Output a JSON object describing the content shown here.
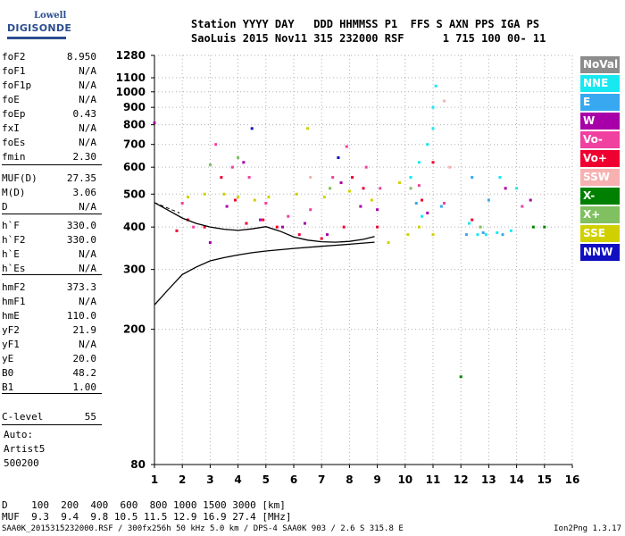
{
  "logo": {
    "line1": "Lowell",
    "line2": "DIGISONDE"
  },
  "header": {
    "line1": "Station YYYY DAY   DDD HHMMSS P1  FFS S AXN PPS IGA PS",
    "line2": "SaoLuis 2015 Nov11 315 232000 RSF      1 715 100 00- 11"
  },
  "params": [
    {
      "key": "foF2",
      "value": "8.950"
    },
    {
      "key": "foF1",
      "value": "N/A"
    },
    {
      "key": "foF1p",
      "value": "N/A"
    },
    {
      "key": "foE",
      "value": "N/A"
    },
    {
      "key": "foEp",
      "value": "0.43"
    },
    {
      "key": "fxI",
      "value": "N/A"
    },
    {
      "key": "foEs",
      "value": "N/A"
    },
    {
      "key": "fmin",
      "value": "2.30"
    },
    {
      "key": "MUF(D)",
      "value": "27.35"
    },
    {
      "key": "M(D)",
      "value": "3.06"
    },
    {
      "key": "D",
      "value": "N/A"
    },
    {
      "key": "h`F",
      "value": "330.0"
    },
    {
      "key": "h`F2",
      "value": "330.0"
    },
    {
      "key": "h`E",
      "value": "N/A"
    },
    {
      "key": "h`Es",
      "value": "N/A"
    },
    {
      "key": "hmF2",
      "value": "373.3"
    },
    {
      "key": "hmF1",
      "value": "N/A"
    },
    {
      "key": "hmE",
      "value": "110.0"
    },
    {
      "key": "yF2",
      "value": "21.9"
    },
    {
      "key": "yF1",
      "value": "N/A"
    },
    {
      "key": "yE",
      "value": "20.0"
    },
    {
      "key": "B0",
      "value": "48.2"
    },
    {
      "key": "B1",
      "value": "1.00"
    },
    {
      "key": "C-level",
      "value": "55"
    }
  ],
  "auto": {
    "line1": "Auto:",
    "line2": "Artist5",
    "line3": "500200"
  },
  "legend": [
    {
      "label": "NoVal",
      "color": "#8c8c8c"
    },
    {
      "label": "NNE",
      "color": "#18e8f0"
    },
    {
      "label": "E",
      "color": "#38a8f0"
    },
    {
      "label": "W",
      "color": "#a800a8"
    },
    {
      "label": "Vo-",
      "color": "#f040a0"
    },
    {
      "label": "Vo+",
      "color": "#f00030"
    },
    {
      "label": "SSW",
      "color": "#f8b0b0"
    },
    {
      "label": "X-",
      "color": "#008000"
    },
    {
      "label": "X+",
      "color": "#80c060"
    },
    {
      "label": "SSE",
      "color": "#d0d000"
    },
    {
      "label": "NNW",
      "color": "#1010c0"
    }
  ],
  "bottom": {
    "d_row": "D    100  200  400  600  800 1000 1500 3000 [km]",
    "muf_row": "MUF  9.3  9.4  9.8 10.5 11.5 12.9 16.9 27.4 [MHz]"
  },
  "footer": {
    "left": "SAA0K_2015315232000.RSF / 300fx256h 50 kHz 5.0 km / DPS-4 SAA0K 903 / 2.6 S 315.8 E",
    "right": "Ion2Png 1.3.17"
  },
  "chart_data": {
    "type": "scatter",
    "title": "",
    "xlabel": "",
    "ylabel": "",
    "xlim": [
      1,
      16
    ],
    "ylim": [
      80,
      1280
    ],
    "x_ticks": [
      1,
      2,
      3,
      4,
      5,
      6,
      7,
      8,
      9,
      10,
      11,
      12,
      13,
      14,
      15,
      16
    ],
    "y_ticks": [
      80,
      200,
      300,
      400,
      500,
      600,
      700,
      800,
      900,
      1000,
      1100,
      1280
    ],
    "y_scale": "log",
    "grid": true,
    "series": [
      {
        "name": "NNE",
        "points": [
          [
            10.2,
            560
          ],
          [
            10.5,
            620
          ],
          [
            10.8,
            700
          ],
          [
            11.0,
            900
          ],
          [
            11.1,
            1040
          ],
          [
            11.0,
            780
          ],
          [
            12.3,
            410
          ],
          [
            12.6,
            380
          ],
          [
            12.9,
            380
          ],
          [
            13.3,
            385
          ],
          [
            13.8,
            390
          ],
          [
            14.0,
            520
          ],
          [
            10.6,
            430
          ],
          [
            13.4,
            560
          ]
        ]
      },
      {
        "name": "E",
        "points": [
          [
            10.4,
            470
          ],
          [
            11.3,
            460
          ],
          [
            12.2,
            380
          ],
          [
            12.8,
            385
          ],
          [
            13.5,
            380
          ],
          [
            13.0,
            480
          ],
          [
            12.4,
            560
          ]
        ]
      },
      {
        "name": "W",
        "points": [
          [
            3.0,
            360
          ],
          [
            3.6,
            460
          ],
          [
            4.2,
            620
          ],
          [
            4.8,
            420
          ],
          [
            5.6,
            400
          ],
          [
            6.4,
            410
          ],
          [
            7.2,
            380
          ],
          [
            7.7,
            540
          ],
          [
            8.4,
            460
          ],
          [
            9.0,
            450
          ],
          [
            10.8,
            440
          ],
          [
            13.6,
            520
          ],
          [
            14.5,
            480
          ],
          [
            1.0,
            810
          ]
        ]
      },
      {
        "name": "Vo-",
        "points": [
          [
            2.0,
            470
          ],
          [
            2.4,
            400
          ],
          [
            3.2,
            700
          ],
          [
            3.8,
            600
          ],
          [
            4.4,
            560
          ],
          [
            5.0,
            470
          ],
          [
            5.8,
            430
          ],
          [
            6.6,
            450
          ],
          [
            7.4,
            560
          ],
          [
            7.9,
            690
          ],
          [
            8.6,
            600
          ],
          [
            9.1,
            520
          ],
          [
            10.5,
            530
          ],
          [
            11.4,
            470
          ],
          [
            14.2,
            460
          ]
        ]
      },
      {
        "name": "Vo+",
        "points": [
          [
            1.8,
            390
          ],
          [
            2.2,
            420
          ],
          [
            2.8,
            400
          ],
          [
            3.4,
            560
          ],
          [
            3.9,
            480
          ],
          [
            4.3,
            410
          ],
          [
            4.9,
            420
          ],
          [
            5.4,
            400
          ],
          [
            6.2,
            380
          ],
          [
            7.0,
            370
          ],
          [
            7.8,
            400
          ],
          [
            8.1,
            560
          ],
          [
            8.5,
            520
          ],
          [
            9.0,
            400
          ],
          [
            10.6,
            480
          ],
          [
            11.0,
            620
          ],
          [
            12.4,
            420
          ]
        ]
      },
      {
        "name": "SSW",
        "points": [
          [
            11.4,
            940
          ],
          [
            11.6,
            600
          ],
          [
            6.6,
            560
          ]
        ]
      },
      {
        "name": "X-",
        "points": [
          [
            12.0,
            145
          ],
          [
            14.6,
            400
          ],
          [
            15.0,
            400
          ]
        ]
      },
      {
        "name": "X+",
        "points": [
          [
            3.0,
            610
          ],
          [
            4.0,
            640
          ],
          [
            7.3,
            520
          ],
          [
            10.2,
            520
          ],
          [
            12.7,
            400
          ]
        ]
      },
      {
        "name": "SSE",
        "points": [
          [
            2.2,
            490
          ],
          [
            2.8,
            500
          ],
          [
            3.5,
            500
          ],
          [
            4.0,
            490
          ],
          [
            4.6,
            480
          ],
          [
            5.1,
            490
          ],
          [
            6.1,
            500
          ],
          [
            7.1,
            490
          ],
          [
            8.0,
            510
          ],
          [
            8.8,
            480
          ],
          [
            9.4,
            360
          ],
          [
            10.1,
            380
          ],
          [
            10.5,
            400
          ],
          [
            11.0,
            380
          ],
          [
            9.8,
            540
          ],
          [
            6.5,
            780
          ]
        ]
      },
      {
        "name": "NNW",
        "points": [
          [
            4.5,
            780
          ],
          [
            7.6,
            640
          ]
        ]
      }
    ],
    "curves": [
      {
        "name": "profile",
        "points": [
          [
            1.0,
            236
          ],
          [
            1.5,
            262
          ],
          [
            2.0,
            290
          ],
          [
            2.5,
            305
          ],
          [
            3.0,
            318
          ],
          [
            3.5,
            325
          ],
          [
            4.0,
            331
          ],
          [
            4.5,
            336
          ],
          [
            5.0,
            340
          ],
          [
            6.0,
            346
          ],
          [
            7.0,
            351
          ],
          [
            8.0,
            356
          ],
          [
            8.9,
            361
          ]
        ]
      },
      {
        "name": "virtual-height",
        "points": [
          [
            1.0,
            472
          ],
          [
            1.5,
            448
          ],
          [
            2.0,
            425
          ],
          [
            2.5,
            410
          ],
          [
            3.0,
            400
          ],
          [
            3.5,
            394
          ],
          [
            4.0,
            391
          ],
          [
            4.5,
            395
          ],
          [
            5.0,
            401
          ],
          [
            5.5,
            389
          ],
          [
            6.0,
            374
          ],
          [
            6.5,
            366
          ],
          [
            7.0,
            362
          ],
          [
            7.5,
            361
          ],
          [
            8.0,
            363
          ],
          [
            8.5,
            368
          ],
          [
            8.9,
            375
          ]
        ]
      }
    ]
  }
}
